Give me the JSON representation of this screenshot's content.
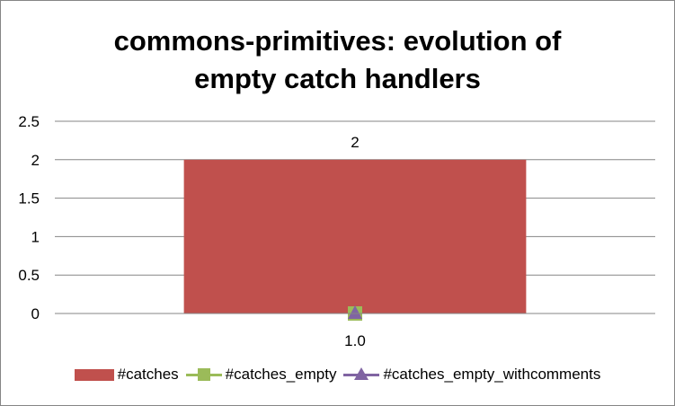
{
  "chart_data": {
    "type": "bar",
    "title_lines": [
      "commons-primitives: evolution of",
      "empty catch handlers"
    ],
    "categories": [
      "1.0"
    ],
    "ylim": [
      0,
      2.5
    ],
    "yticks": [
      "0",
      "0.5",
      "1",
      "1.5",
      "2",
      "2.5"
    ],
    "ytick_values": [
      0,
      0.5,
      1,
      1.5,
      2,
      2.5
    ],
    "grid": true,
    "legend_position": "bottom",
    "series": [
      {
        "name": "#catches",
        "kind": "bar",
        "color": "#c0504d",
        "values": [
          2
        ],
        "data_labels": [
          "2"
        ]
      },
      {
        "name": "#catches_empty",
        "kind": "line",
        "marker": "square",
        "color": "#9bbb59",
        "values": [
          0
        ]
      },
      {
        "name": "#catches_empty_withcomments",
        "kind": "line",
        "marker": "triangle",
        "color": "#8064a2",
        "values": [
          0
        ]
      }
    ]
  }
}
